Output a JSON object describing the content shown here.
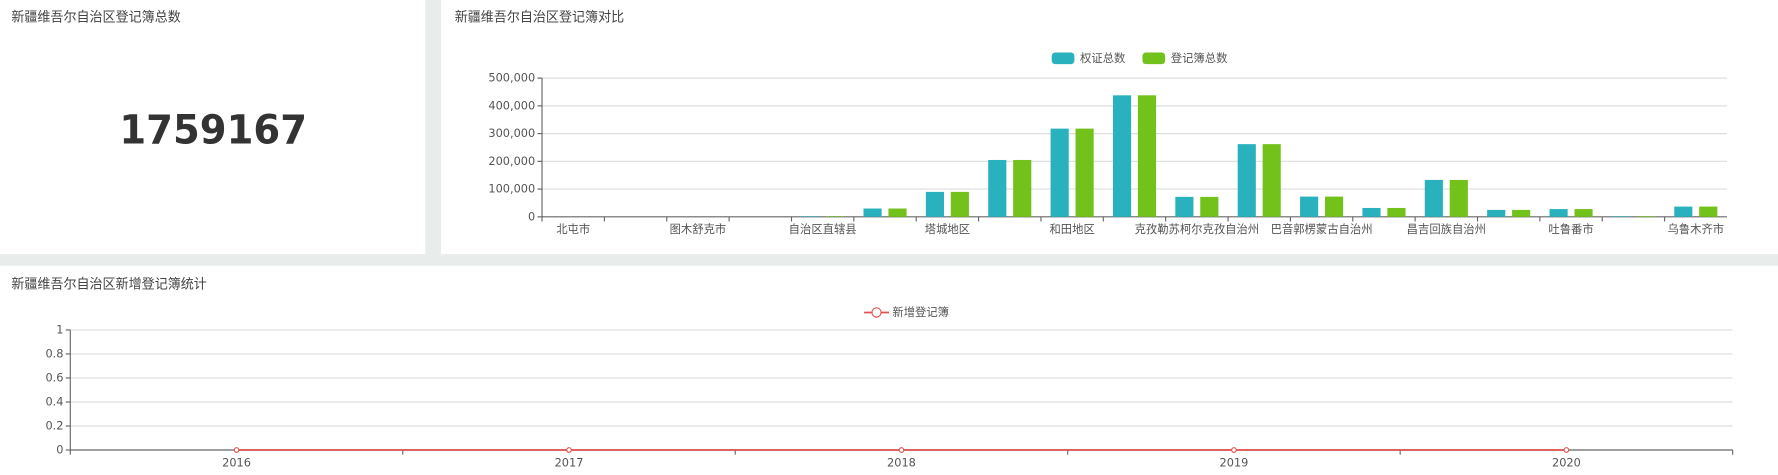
{
  "total_panel": {
    "title": "新疆维吾尔自治区登记簿总数",
    "value": "1759167"
  },
  "chart_data": [
    {
      "type": "bar",
      "title": "新疆维吾尔自治区登记簿对比",
      "categories": [
        "北屯市",
        null,
        "图木舒克市",
        null,
        "自治区直辖县",
        null,
        "塔城地区",
        null,
        "和田地区",
        null,
        "克孜勒苏柯尔克孜自治州",
        null,
        "巴音郭楞蒙古自治州",
        null,
        "昌吉回族自治州",
        null,
        "吐鲁番市",
        null,
        "乌鲁木齐市"
      ],
      "series": [
        {
          "name": "权证总数",
          "color": "#29b2bd",
          "values": [
            0,
            0,
            0,
            0,
            2000,
            30000,
            90000,
            205000,
            318000,
            438000,
            72000,
            262000,
            73000,
            32000,
            133000,
            25000,
            28000,
            2000,
            37000
          ]
        },
        {
          "name": "登记簿总数",
          "color": "#72c21b",
          "values": [
            0,
            0,
            0,
            0,
            2000,
            30000,
            90000,
            205000,
            318000,
            438000,
            72000,
            262000,
            73000,
            32000,
            133000,
            25000,
            28000,
            2000,
            37000
          ]
        }
      ],
      "ylim": [
        0,
        500000
      ],
      "yticks": [
        0,
        {
          "value": 100000,
          "label": "100,000"
        },
        {
          "value": 200000,
          "label": "200,000"
        },
        {
          "value": 300000,
          "label": "300,000"
        },
        {
          "value": 400000,
          "label": "400,000"
        },
        {
          "value": 500000,
          "label": "500,000"
        }
      ],
      "grid": true,
      "legend": "top"
    },
    {
      "type": "line",
      "title": "新疆维吾尔自治区新增登记簿统计",
      "categories": [
        "2016",
        "2017",
        "2018",
        "2019",
        "2020"
      ],
      "series": [
        {
          "name": "新增登记簿",
          "color": "#e0524f",
          "values": [
            0,
            0,
            0,
            0,
            0
          ]
        }
      ],
      "ylim": [
        0,
        1
      ],
      "yticks": [
        0,
        0.2,
        0.4,
        0.6,
        0.8,
        1
      ],
      "grid": true,
      "legend": "top"
    }
  ]
}
